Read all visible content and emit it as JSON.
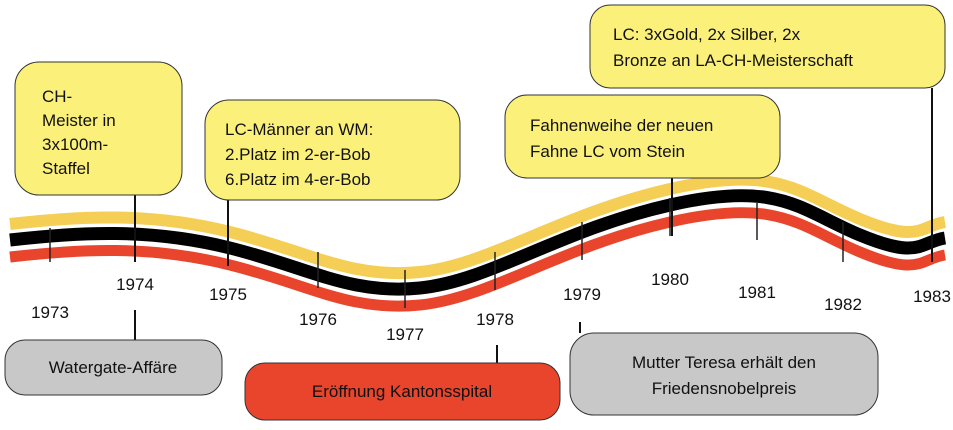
{
  "years": [
    "1973",
    "1974",
    "1975",
    "1976",
    "1977",
    "1978",
    "1979",
    "1980",
    "1981",
    "1982",
    "1983"
  ],
  "events_above": [
    {
      "lines": [
        "CH-",
        "Meister  in",
        "3x100m-",
        "Staffel"
      ]
    },
    {
      "lines": [
        "LC-Männer an WM:",
        "2.Platz im 2-er-Bob",
        "6.Platz im 4-er-Bob"
      ]
    },
    {
      "lines": [
        "Fahnenweihe der neuen",
        "Fahne LC vom Stein"
      ]
    },
    {
      "lines": [
        "LC: 3xGold, 2x Silber, 2x",
        "Bronze an LA-CH-Meisterschaft"
      ]
    }
  ],
  "events_below": [
    {
      "lines": [
        "Watergate-Affäre"
      ]
    },
    {
      "lines": [
        "Eröffnung Kantonsspital"
      ]
    },
    {
      "lines": [
        "Mutter Teresa erhält den",
        "Friedensnobelpreis"
      ]
    }
  ]
}
